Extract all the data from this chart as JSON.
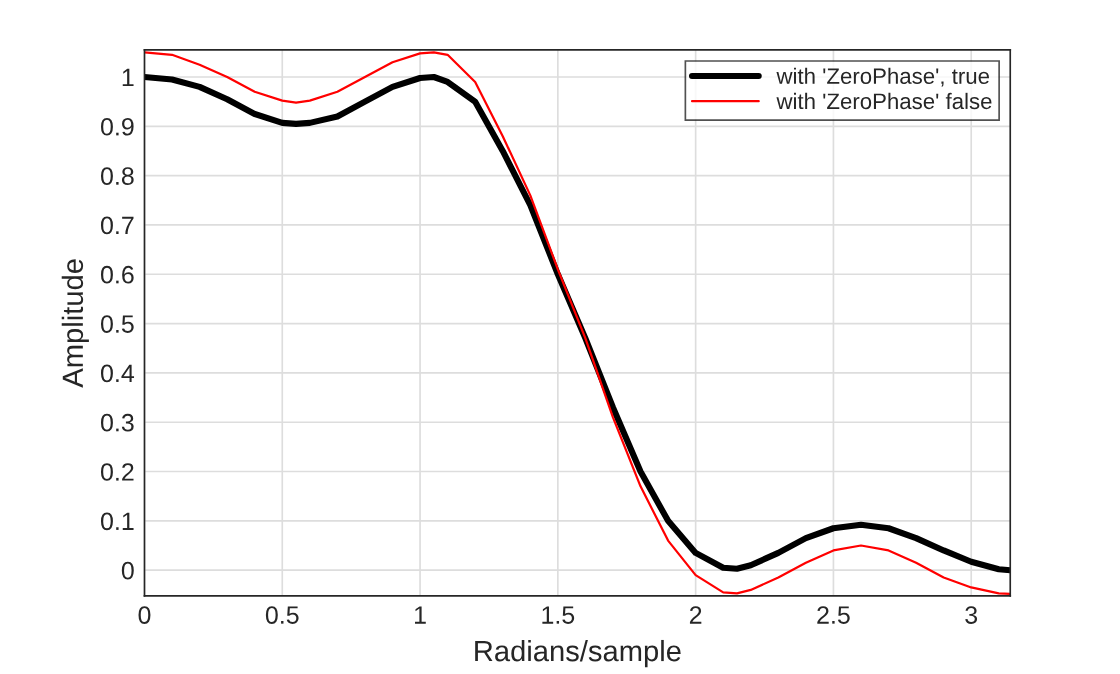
{
  "chart_data": {
    "type": "line",
    "xlabel": "Radians/sample",
    "ylabel": "Amplitude",
    "xlim": [
      0,
      3.1416
    ],
    "xticks": [
      0,
      0.5,
      1,
      1.5,
      2,
      2.5,
      3
    ],
    "ylim": [
      -0.052,
      1.055
    ],
    "yticks": [
      0,
      0.1,
      0.2,
      0.3,
      0.4,
      0.5,
      0.6,
      0.7,
      0.8,
      0.9,
      1
    ],
    "grid": true,
    "legend": "top right",
    "line_style": "solid",
    "x": [
      0,
      0.1,
      0.2,
      0.3,
      0.4,
      0.5,
      0.55,
      0.6,
      0.7,
      0.8,
      0.9,
      1.0,
      1.05,
      1.1,
      1.2,
      1.3,
      1.4,
      1.5,
      1.6,
      1.7,
      1.8,
      1.9,
      2.0,
      2.1,
      2.15,
      2.2,
      2.3,
      2.4,
      2.5,
      2.6,
      2.7,
      2.8,
      2.9,
      3.0,
      3.1,
      3.1416
    ],
    "series": [
      {
        "name": "with 'ZeroPhase', true",
        "color": "#000000",
        "values": [
          1.0,
          0.995,
          0.98,
          0.955,
          0.925,
          0.907,
          0.905,
          0.907,
          0.92,
          0.95,
          0.98,
          0.998,
          1.0,
          0.99,
          0.95,
          0.85,
          0.74,
          0.6,
          0.47,
          0.33,
          0.2,
          0.1,
          0.035,
          0.005,
          0.003,
          0.01,
          0.035,
          0.065,
          0.085,
          0.092,
          0.085,
          0.065,
          0.04,
          0.017,
          0.002,
          0.0
        ]
      },
      {
        "name": "with 'ZeroPhase' false",
        "color": "#ff0000",
        "values": [
          1.05,
          1.045,
          1.025,
          1.0,
          0.97,
          0.952,
          0.948,
          0.952,
          0.97,
          1.0,
          1.03,
          1.048,
          1.05,
          1.045,
          0.99,
          0.88,
          0.76,
          0.61,
          0.47,
          0.31,
          0.17,
          0.06,
          -0.01,
          -0.045,
          -0.047,
          -0.04,
          -0.015,
          0.015,
          0.04,
          0.05,
          0.04,
          0.015,
          -0.015,
          -0.035,
          -0.047,
          -0.048
        ]
      }
    ]
  }
}
